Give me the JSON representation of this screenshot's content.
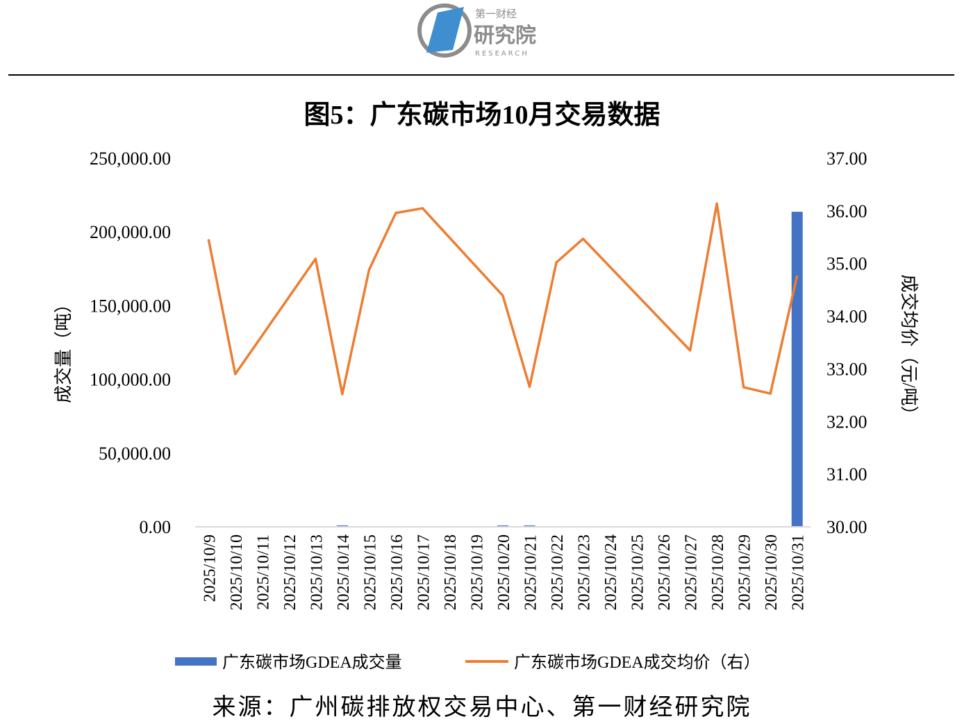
{
  "header": {
    "logo_text_top": "第一财经",
    "logo_text_main": "研究院",
    "logo_text_sub": "RESEARCH"
  },
  "colors": {
    "bar": "#4472C4",
    "line": "#ED7D31",
    "axis": "#D9D9D9",
    "logo_blue": "#3E8ED0",
    "logo_gray": "#8C8C8C"
  },
  "chart_data": {
    "type": "bar+line",
    "title": "图5：广东碳市场10月交易数据",
    "ylabel": "成交量（吨）",
    "ylabel_right": "成交均价（元/吨）",
    "ylim": [
      0,
      250000
    ],
    "ylim_right": [
      30,
      37
    ],
    "yticks": [
      "0.00",
      "50,000.00",
      "100,000.00",
      "150,000.00",
      "200,000.00",
      "250,000.00"
    ],
    "yticks_right": [
      "30.00",
      "31.00",
      "32.00",
      "33.00",
      "34.00",
      "35.00",
      "36.00",
      "37.00"
    ],
    "categories": [
      "2025/10/9",
      "2025/10/10",
      "2025/10/11",
      "2025/10/12",
      "2025/10/13",
      "2025/10/14",
      "2025/10/15",
      "2025/10/16",
      "2025/10/17",
      "2025/10/18",
      "2025/10/19",
      "2025/10/20",
      "2025/10/21",
      "2025/10/22",
      "2025/10/23",
      "2025/10/24",
      "2025/10/25",
      "2025/10/26",
      "2025/10/27",
      "2025/10/28",
      "2025/10/29",
      "2025/10/30",
      "2025/10/31"
    ],
    "series": [
      {
        "name": "广东碳市场GDEA成交量",
        "type": "bar",
        "axis": "left",
        "values": [
          0,
          0,
          null,
          null,
          0,
          500,
          0,
          0,
          0,
          null,
          null,
          500,
          500,
          0,
          0,
          null,
          null,
          null,
          0,
          0,
          0,
          0,
          213700
        ]
      },
      {
        "name": "广东碳市场GDEA成交均价（右）",
        "type": "line",
        "axis": "right",
        "values": [
          35.46,
          32.9,
          null,
          null,
          35.09,
          32.52,
          34.88,
          35.96,
          36.05,
          null,
          null,
          34.39,
          32.66,
          35.02,
          35.47,
          null,
          null,
          null,
          33.35,
          36.14,
          32.65,
          32.53,
          34.77
        ]
      }
    ],
    "legend_position": "bottom",
    "grid": false
  },
  "footer": {
    "source": "来源：广州碳排放权交易中心、第一财经研究院"
  }
}
